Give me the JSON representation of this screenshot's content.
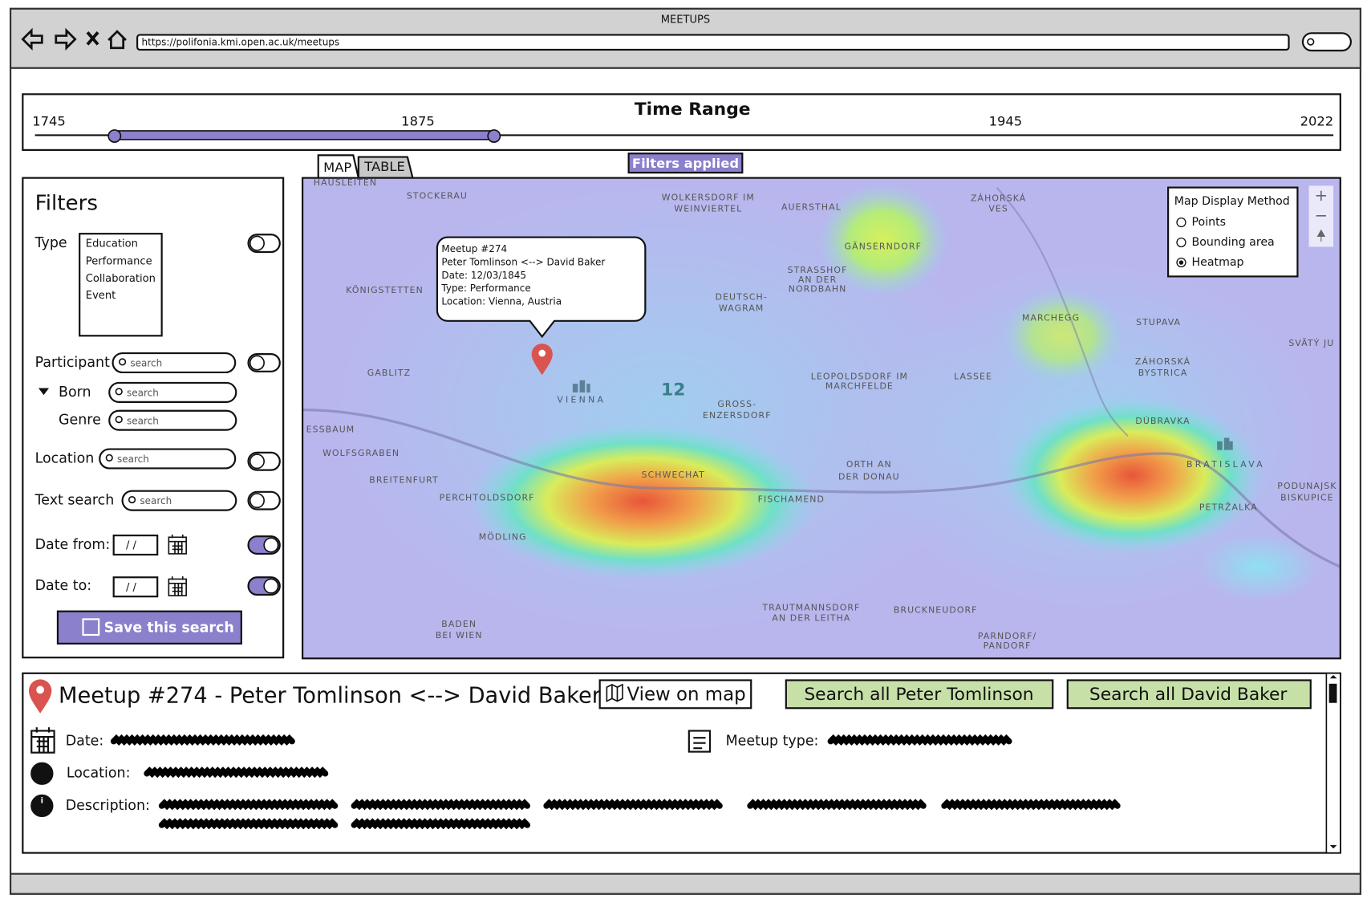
{
  "window": {
    "title": "MEETUPS",
    "url": "https://polifonia.kmi.open.ac.uk/meetups"
  },
  "time_range": {
    "title": "Time Range",
    "labels": [
      "1745",
      "1875",
      "1945",
      "2022"
    ]
  },
  "filters": {
    "title": "Filters",
    "type_label": "Type",
    "type_options": [
      "Education",
      "Performance",
      "Collaboration",
      "Event"
    ],
    "participant": "Participant",
    "born": "Born",
    "genre": "Genre",
    "location": "Location",
    "text_search": "Text search",
    "date_from": "Date from:",
    "date_to": "Date to:",
    "date_placeholder": "/ /",
    "search_placeholder": "search",
    "save": "Save this search"
  },
  "tabs": [
    "MAP",
    "TABLE"
  ],
  "filters_applied": "Filters applied",
  "map": {
    "tooltip": [
      "Meetup #274",
      "Peter Tomlinson <--> David Baker",
      "Date: 12/03/1845",
      "Type: Performance",
      "Location: Vienna, Austria"
    ],
    "cluster_count": "12",
    "display_method": {
      "title": "Map Display Method",
      "options": [
        "Points",
        "Bounding area",
        "Heatmap"
      ],
      "selected": "Heatmap"
    },
    "labels": [
      "HAUSLEITEN",
      "STOCKERAU",
      "WOLKERSDORF IM",
      "WEINVIERTEL",
      "AUERSTHAL",
      "ZÁHORSKÁ",
      "VES",
      "GÄNSERNDORF",
      "STRASSHOF",
      "AN DER",
      "NORDBAHN",
      "KÖNIGSTETTEN",
      "DEUTSCH-",
      "WAGRAM",
      "MARCHEGG",
      "STUPAVA",
      "SVÄTÝ JU",
      "GABLITZ",
      "VIENNA",
      "LEOPOLDSDORF IM",
      "MARCHFELDE",
      "LASSEE",
      "ZÁHORSKÁ",
      "BYSTRICA",
      "GROSS-",
      "ENZERSDORF",
      "DÚBRAVKA",
      "BRATISLAVA",
      "ESSBAUM",
      "WOLFSGRABEN",
      "BREITENFURT",
      "SCHWECHAT",
      "ORTH AN",
      "DER DONAU",
      "PERCHTOLDSDORF",
      "FISCHAMEND",
      "PETRŽALKA",
      "PODUNAJSK",
      "BISKUPICE",
      "MÖDLING",
      "TRAUTMANNSDORF",
      "AN DER LEITHA",
      "BRUCKNEUDORF",
      "BADEN",
      "BEI WIEN",
      "PARNDORF/",
      "PANDORF"
    ]
  },
  "detail": {
    "title": "Meetup #274 - Peter Tomlinson <--> David Baker",
    "view_on_map": "View on map",
    "search_buttons": [
      "Search all Peter Tomlinson",
      "Search all David Baker"
    ],
    "fields": [
      "Date:",
      "Location:",
      "Description:"
    ],
    "meetup_type": "Meetup type:"
  }
}
